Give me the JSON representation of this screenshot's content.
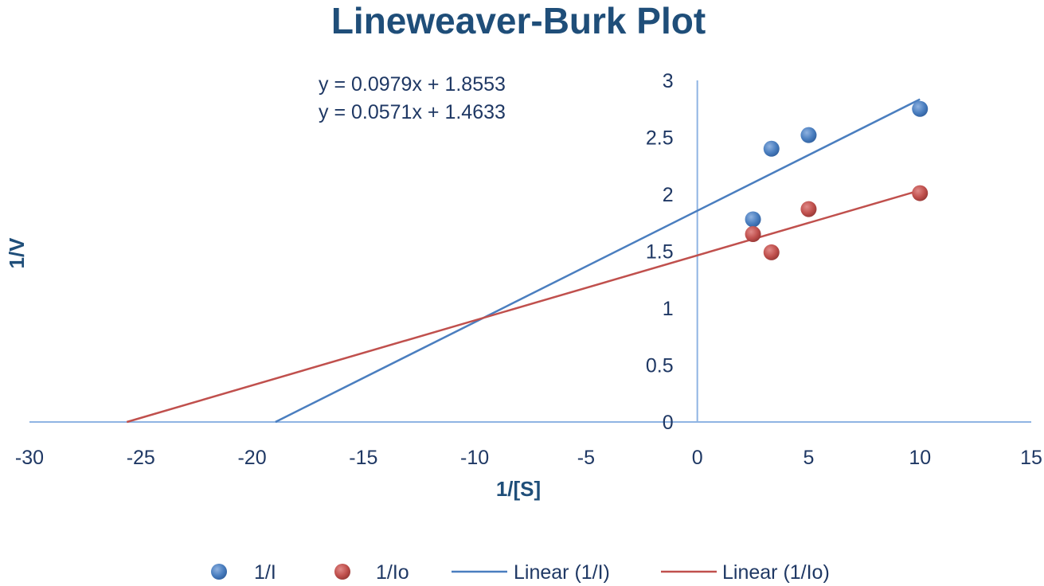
{
  "chart_data": {
    "type": "scatter",
    "title": "Lineweaver-Burk Plot",
    "xlabel": "1/[S]",
    "ylabel": "1/V",
    "xlim": [
      -30,
      15
    ],
    "ylim": [
      0,
      3
    ],
    "x_ticks": [
      -30,
      -25,
      -20,
      -15,
      -10,
      -5,
      0,
      5,
      10,
      15
    ],
    "y_ticks": [
      0,
      0.5,
      1,
      1.5,
      2,
      2.5,
      3
    ],
    "x_tick_labels": [
      "-30",
      "-25",
      "-20",
      "-15",
      "-10",
      "-5",
      "0",
      "5",
      "10",
      "15"
    ],
    "y_tick_labels": [
      "0",
      "0.5",
      "1",
      "1.5",
      "2",
      "2.5",
      "3"
    ],
    "equations": [
      "y = 0.0979x + 1.8553",
      "y = 0.0571x + 1.4633"
    ],
    "series": [
      {
        "name": "1/I",
        "kind": "scatter",
        "color": "#4a7ebf",
        "x": [
          2.5,
          3.33,
          5,
          10
        ],
        "y": [
          1.78,
          2.4,
          2.52,
          2.75
        ]
      },
      {
        "name": "1/Io",
        "kind": "scatter",
        "color": "#c0504d",
        "x": [
          2.5,
          3.33,
          5,
          10
        ],
        "y": [
          1.65,
          1.49,
          1.87,
          2.01
        ]
      },
      {
        "name": "Linear (1/I)",
        "kind": "line",
        "color": "#4a7ebf",
        "slope": 0.0979,
        "intercept": 1.8553
      },
      {
        "name": "Linear (1/Io)",
        "kind": "line",
        "color": "#c0504d",
        "slope": 0.0571,
        "intercept": 1.4633
      }
    ],
    "grid": false,
    "legend_position": "bottom"
  }
}
